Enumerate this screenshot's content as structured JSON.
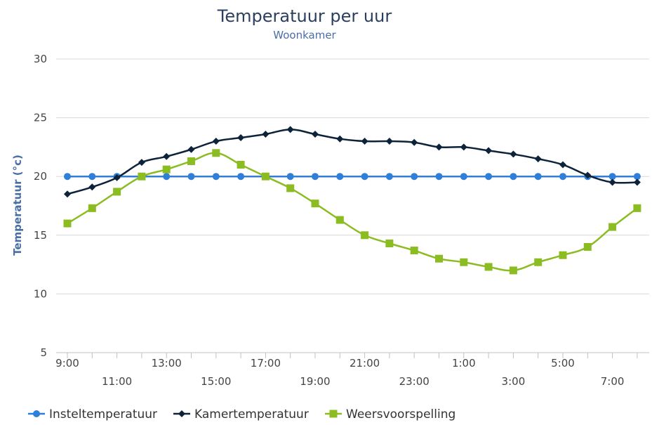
{
  "chart_data": {
    "type": "line",
    "title": "Temperatuur per uur",
    "subtitle": "Woonkamer",
    "ylabel": "Temperatuur (°c)",
    "xlabel": "",
    "ylim": [
      5,
      30
    ],
    "yticks": [
      5,
      10,
      15,
      20,
      25,
      30
    ],
    "grid": true,
    "legend_position": "bottom",
    "categories": [
      "9:00",
      "10:00",
      "11:00",
      "12:00",
      "13:00",
      "14:00",
      "15:00",
      "16:00",
      "17:00",
      "18:00",
      "19:00",
      "20:00",
      "21:00",
      "22:00",
      "23:00",
      "0:00",
      "1:00",
      "2:00",
      "3:00",
      "4:00",
      "5:00",
      "6:00",
      "7:00",
      "8:00"
    ],
    "x_tick_labels_upper": [
      "9:00",
      "13:00",
      "17:00",
      "21:00",
      "1:00",
      "5:00"
    ],
    "x_tick_labels_lower": [
      "11:00",
      "15:00",
      "19:00",
      "23:00",
      "3:00",
      "7:00"
    ],
    "series": [
      {
        "name": "Insteltemperatuur",
        "color": "#2f7ed8",
        "marker": "circle",
        "values": [
          20,
          20,
          20,
          20,
          20,
          20,
          20,
          20,
          20,
          20,
          20,
          20,
          20,
          20,
          20,
          20,
          20,
          20,
          20,
          20,
          20,
          20,
          20,
          20
        ]
      },
      {
        "name": "Kamertemperatuur",
        "color": "#0d233a",
        "marker": "diamond",
        "values": [
          18.5,
          19.1,
          19.9,
          21.2,
          21.7,
          22.3,
          23.0,
          23.3,
          23.6,
          24.0,
          23.6,
          23.2,
          23.0,
          23.0,
          22.9,
          22.5,
          22.5,
          22.2,
          21.9,
          21.5,
          21.0,
          20.1,
          19.5,
          19.5
        ]
      },
      {
        "name": "Weersvoorspelling",
        "color": "#8bbc21",
        "marker": "square",
        "values": [
          16.0,
          17.3,
          18.7,
          20.0,
          20.6,
          21.3,
          22.0,
          21.0,
          20.0,
          19.0,
          17.7,
          16.3,
          15.0,
          14.3,
          13.7,
          13.0,
          12.7,
          12.3,
          12.0,
          12.7,
          13.3,
          14.0,
          15.7,
          17.3
        ]
      }
    ]
  }
}
